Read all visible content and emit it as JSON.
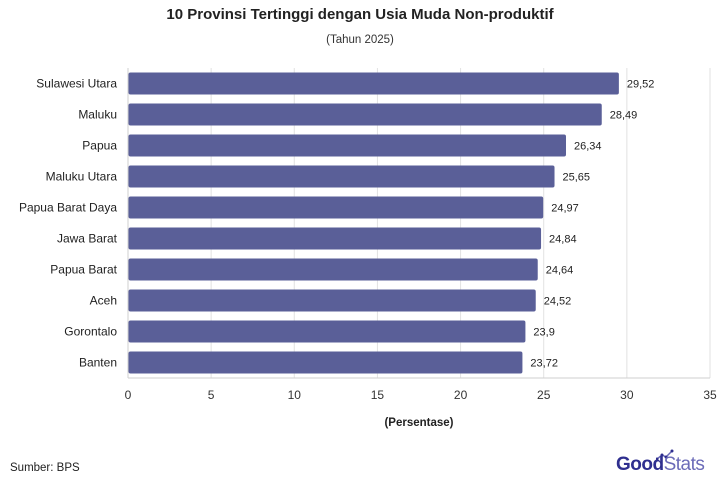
{
  "chart_data": {
    "type": "bar",
    "orientation": "horizontal",
    "title": "10 Provinsi Tertinggi dengan Usia Muda Non-produktif",
    "subtitle": "(Tahun 2025)",
    "xlabel": "(Persentase)",
    "ylabel": "",
    "xlim": [
      0,
      35
    ],
    "xticks": [
      0,
      5,
      10,
      15,
      20,
      25,
      30,
      35
    ],
    "grid": true,
    "bar_color": "#5a5f98",
    "categories": [
      "Sulawesi Utara",
      "Maluku",
      "Papua",
      "Maluku Utara",
      "Papua Barat Daya",
      "Jawa Barat",
      "Papua Barat",
      "Aceh",
      "Gorontalo",
      "Banten"
    ],
    "values": [
      29.52,
      28.49,
      26.34,
      25.65,
      24.97,
      24.84,
      24.64,
      24.52,
      23.9,
      23.72
    ],
    "value_labels": [
      "29,52",
      "28,49",
      "26,34",
      "25,65",
      "24,97",
      "24,84",
      "24,64",
      "24,52",
      "23,9",
      "23,72"
    ]
  },
  "footer": {
    "source": "Sumber: BPS",
    "brand_part1": "Good",
    "brand_part2": "Stats"
  },
  "colors": {
    "bar": "#5a5f98",
    "brand_dark": "#2f2f8f",
    "brand_light": "#6b6bb8"
  }
}
